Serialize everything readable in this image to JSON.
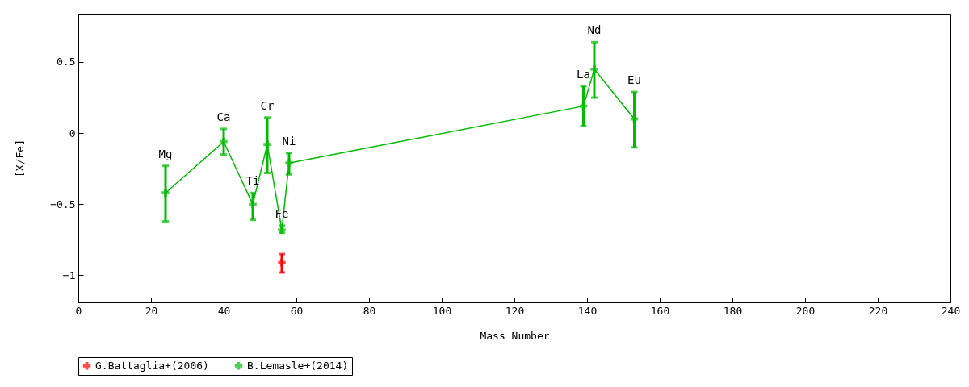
{
  "chart_data": {
    "type": "line",
    "xlabel": "Mass Number",
    "ylabel": "[X/Fe]",
    "xlim": [
      0,
      240
    ],
    "xticks": [
      0,
      20,
      40,
      60,
      80,
      100,
      120,
      140,
      160,
      180,
      200,
      220,
      240
    ],
    "ylim": [
      -1.19,
      0.84
    ],
    "yticks": [
      -1,
      -0.5,
      0,
      0.5
    ],
    "grid": false,
    "legend": "bottom",
    "marker": "cross",
    "series": [
      {
        "name": "G.Battaglia+(2006)",
        "color": "#ff0000",
        "x": [
          56
        ],
        "values": [
          -0.91
        ],
        "errors": [
          [
            -0.98,
            -0.85
          ]
        ]
      },
      {
        "name": "B.Lemasle+(2014)",
        "color": "#00bb00",
        "x": [
          24,
          40,
          48,
          52,
          56,
          58,
          139,
          142,
          153
        ],
        "values": [
          -0.42,
          -0.06,
          -0.5,
          -0.08,
          -0.68,
          -0.21,
          0.19,
          0.45,
          0.1
        ],
        "errors": [
          [
            -0.62,
            -0.23
          ],
          [
            -0.15,
            0.03
          ],
          [
            -0.61,
            -0.42
          ],
          [
            -0.28,
            0.11
          ],
          [
            -0.7,
            -0.65
          ],
          [
            -0.29,
            -0.14
          ],
          [
            0.05,
            0.33
          ],
          [
            0.25,
            0.64
          ],
          [
            -0.1,
            0.29
          ]
        ]
      }
    ],
    "annotations": [
      "Mg",
      "Ca",
      "Ti",
      "Cr",
      "Fe",
      "Ni",
      "La",
      "Nd",
      "Eu"
    ]
  }
}
